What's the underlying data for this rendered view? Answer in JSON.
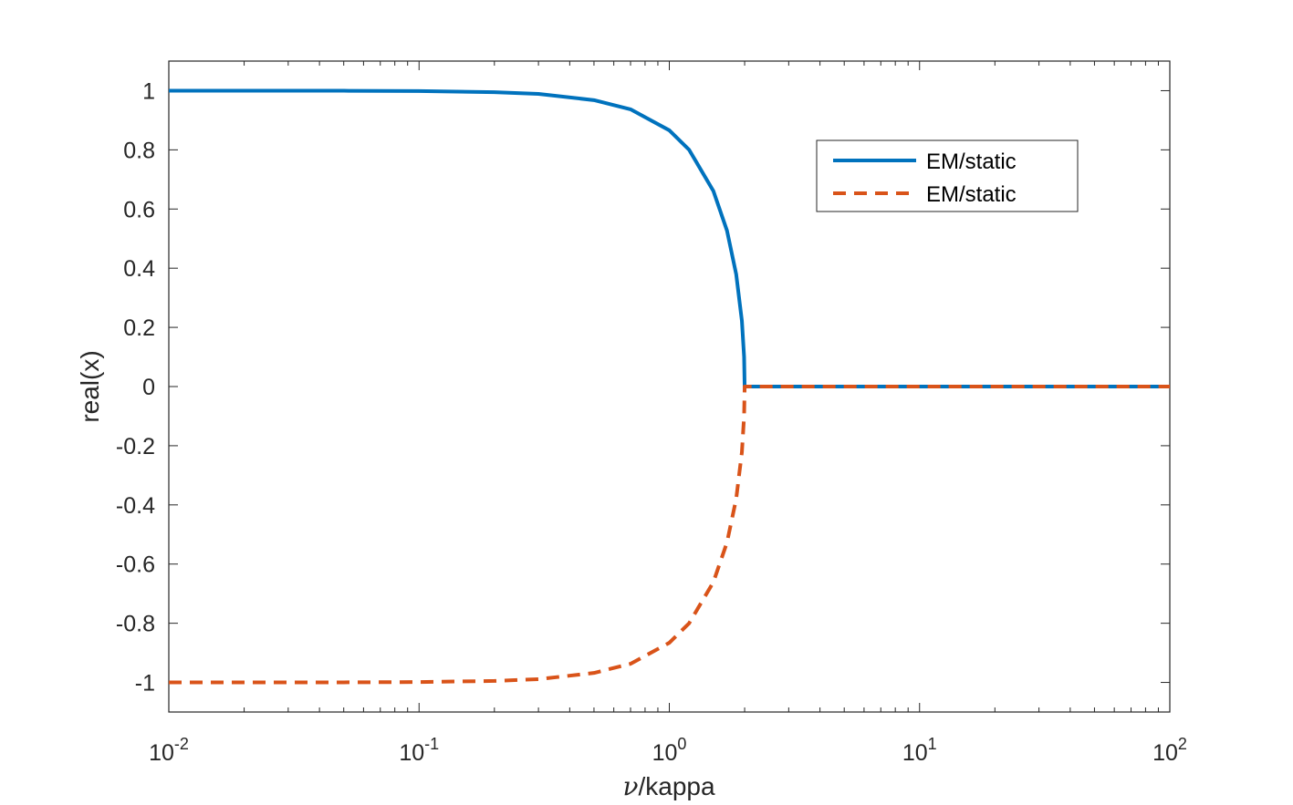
{
  "chart_data": {
    "type": "line",
    "title": "",
    "xlabel": {
      "symbol": "ν",
      "text": "/kappa"
    },
    "ylabel": "real(x)",
    "xscale": "log",
    "xlim": [
      0.01,
      100
    ],
    "ylim": [
      -1.1,
      1.1
    ],
    "grid": false,
    "legend_position": "top-right",
    "x_ticks": [
      {
        "value": 0.01,
        "base": "10",
        "exp": "-2"
      },
      {
        "value": 0.1,
        "base": "10",
        "exp": "-1"
      },
      {
        "value": 1,
        "base": "10",
        "exp": "0"
      },
      {
        "value": 10,
        "base": "10",
        "exp": "1"
      },
      {
        "value": 100,
        "base": "10",
        "exp": "2"
      }
    ],
    "y_ticks": [
      {
        "value": 1,
        "label": "1"
      },
      {
        "value": 0.8,
        "label": "0.8"
      },
      {
        "value": 0.6,
        "label": "0.6"
      },
      {
        "value": 0.4,
        "label": "0.4"
      },
      {
        "value": 0.2,
        "label": "0.2"
      },
      {
        "value": 0,
        "label": "0"
      },
      {
        "value": -0.2,
        "label": "-0.2"
      },
      {
        "value": -0.4,
        "label": "-0.4"
      },
      {
        "value": -0.6,
        "label": "-0.6"
      },
      {
        "value": -0.8,
        "label": "-0.8"
      },
      {
        "value": -1,
        "label": "-1"
      }
    ],
    "series": [
      {
        "name": "EM/static",
        "color": "#0072BD",
        "style": "solid",
        "x": [
          0.01,
          0.05,
          0.1,
          0.2,
          0.3,
          0.5,
          0.7,
          1.0,
          1.2,
          1.5,
          1.7,
          1.85,
          1.95,
          1.99,
          2.0,
          5,
          10,
          50,
          100
        ],
        "y": [
          1.0,
          0.9997,
          0.9987,
          0.995,
          0.989,
          0.968,
          0.937,
          0.866,
          0.8,
          0.661,
          0.527,
          0.38,
          0.222,
          0.1,
          0,
          0,
          0,
          0,
          0
        ]
      },
      {
        "name": "EM/static",
        "color": "#D95319",
        "style": "dashed",
        "x": [
          0.01,
          0.05,
          0.1,
          0.2,
          0.3,
          0.5,
          0.7,
          1.0,
          1.2,
          1.5,
          1.7,
          1.85,
          1.95,
          1.99,
          2.0,
          5,
          10,
          50,
          100
        ],
        "y": [
          -1.0,
          -0.9997,
          -0.9987,
          -0.995,
          -0.989,
          -0.968,
          -0.937,
          -0.866,
          -0.8,
          -0.661,
          -0.527,
          -0.38,
          -0.222,
          -0.1,
          0,
          0,
          0,
          0,
          0
        ]
      }
    ]
  }
}
